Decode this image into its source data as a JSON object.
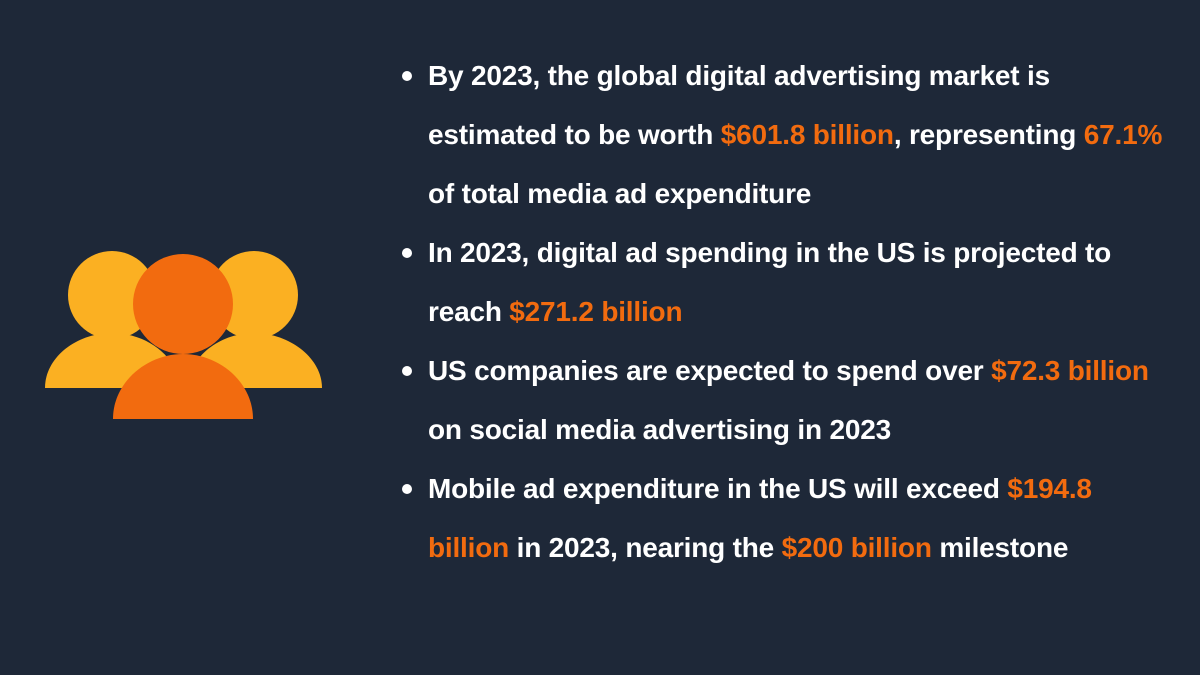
{
  "colors": {
    "background": "#1e2838",
    "text": "#ffffff",
    "highlight": "#f26b0f",
    "figure_back": "#fbb022",
    "figure_front": "#f26b0f"
  },
  "illustration": {
    "icon": "people-group-icon"
  },
  "bullets": [
    {
      "segments": [
        {
          "text": "By 2023, the global digital advertising market is estimated to be worth ",
          "highlight": false
        },
        {
          "text": "$601.8 billion",
          "highlight": true
        },
        {
          "text": ", representing ",
          "highlight": false
        },
        {
          "text": "67.1%",
          "highlight": true
        },
        {
          "text": " of total media ad expenditure",
          "highlight": false
        }
      ]
    },
    {
      "segments": [
        {
          "text": "In 2023, digital ad spending in the US is projected to reach ",
          "highlight": false
        },
        {
          "text": "$271.2 billion",
          "highlight": true
        }
      ]
    },
    {
      "segments": [
        {
          "text": "US companies are expected to spend over ",
          "highlight": false
        },
        {
          "text": "$72.3 billion",
          "highlight": true
        },
        {
          "text": " on social media advertising in 2023",
          "highlight": false
        }
      ]
    },
    {
      "segments": [
        {
          "text": "Mobile ad expenditure in the US will exceed ",
          "highlight": false
        },
        {
          "text": "$194.8 billion",
          "highlight": true
        },
        {
          "text": " in 2023, nearing the ",
          "highlight": false
        },
        {
          "text": "$200 billion",
          "highlight": true
        },
        {
          "text": " milestone",
          "highlight": false
        }
      ]
    }
  ]
}
